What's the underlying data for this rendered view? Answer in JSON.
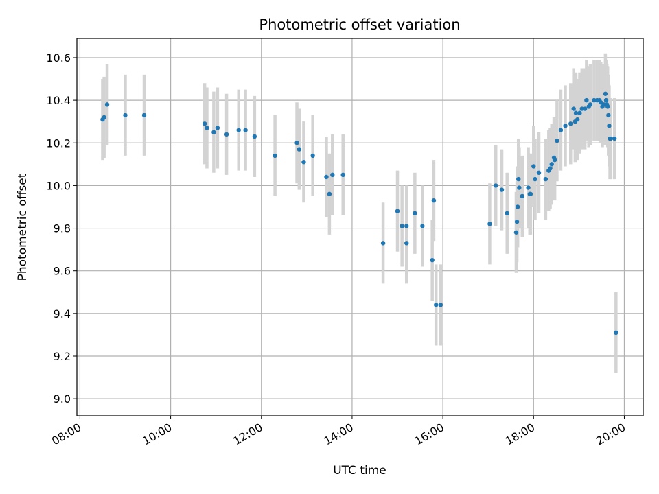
{
  "chart_data": {
    "type": "scatter",
    "title": "Photometric offset variation",
    "xlabel": "UTC time",
    "ylabel": "Photometric offset",
    "xlim": [
      "07:56",
      "20:25"
    ],
    "ylim": [
      8.92,
      10.69
    ],
    "x_ticks": [
      "08:00",
      "10:00",
      "12:00",
      "14:00",
      "16:00",
      "18:00",
      "20:00"
    ],
    "y_ticks": [
      "9.0",
      "9.2",
      "9.4",
      "9.6",
      "9.8",
      "10.0",
      "10.2",
      "10.4",
      "10.6"
    ],
    "grid": true,
    "colors": {
      "point": "#1f77b4",
      "errorbar": "#d3d3d3",
      "grid": "#b0b0b0"
    },
    "series": [
      {
        "error": 0.19,
        "points": [
          [
            "08:30",
            10.31
          ],
          [
            "08:32",
            10.32
          ],
          [
            "08:36",
            10.38
          ],
          [
            "09:00",
            10.33
          ],
          [
            "09:25",
            10.33
          ],
          [
            "10:45",
            10.29
          ],
          [
            "10:48",
            10.27
          ],
          [
            "10:57",
            10.25
          ],
          [
            "11:02",
            10.27
          ],
          [
            "11:14",
            10.24
          ],
          [
            "11:30",
            10.26
          ],
          [
            "11:39",
            10.26
          ],
          [
            "11:51",
            10.23
          ],
          [
            "12:18",
            10.14
          ],
          [
            "12:47",
            10.2
          ],
          [
            "12:50",
            10.17
          ],
          [
            "12:56",
            10.11
          ],
          [
            "13:08",
            10.14
          ],
          [
            "13:26",
            10.04
          ],
          [
            "13:30",
            9.96
          ],
          [
            "13:34",
            10.05
          ],
          [
            "13:48",
            10.05
          ],
          [
            "14:41",
            9.73
          ],
          [
            "15:00",
            9.88
          ],
          [
            "15:06",
            9.81
          ],
          [
            "15:12",
            9.81
          ],
          [
            "15:12",
            9.73
          ],
          [
            "15:23",
            9.87
          ],
          [
            "15:33",
            9.81
          ],
          [
            "15:46",
            9.65
          ],
          [
            "15:48",
            9.93
          ],
          [
            "15:51",
            9.44
          ],
          [
            "15:57",
            9.44
          ],
          [
            "17:02",
            9.82
          ],
          [
            "17:10",
            10.0
          ],
          [
            "17:18",
            9.98
          ],
          [
            "17:25",
            9.87
          ],
          [
            "17:37",
            9.78
          ],
          [
            "17:38",
            9.83
          ],
          [
            "17:39",
            9.9
          ],
          [
            "17:40",
            10.03
          ],
          [
            "17:41",
            9.99
          ],
          [
            "17:45",
            9.95
          ],
          [
            "17:53",
            9.99
          ],
          [
            "17:55",
            9.96
          ],
          [
            "17:56",
            9.96
          ],
          [
            "18:00",
            10.09
          ],
          [
            "18:02",
            10.03
          ],
          [
            "18:07",
            10.06
          ],
          [
            "18:16",
            10.03
          ],
          [
            "18:20",
            10.07
          ],
          [
            "18:22",
            10.08
          ],
          [
            "18:24",
            10.1
          ],
          [
            "18:27",
            10.13
          ],
          [
            "18:28",
            10.12
          ],
          [
            "18:31",
            10.21
          ],
          [
            "18:36",
            10.26
          ],
          [
            "18:42",
            10.28
          ],
          [
            "18:49",
            10.29
          ],
          [
            "18:53",
            10.36
          ],
          [
            "18:55",
            10.3
          ],
          [
            "18:56",
            10.34
          ],
          [
            "18:58",
            10.31
          ],
          [
            "19:01",
            10.34
          ],
          [
            "19:04",
            10.36
          ],
          [
            "19:08",
            10.36
          ],
          [
            "19:10",
            10.4
          ],
          [
            "19:13",
            10.37
          ],
          [
            "19:15",
            10.38
          ],
          [
            "19:20",
            10.4
          ],
          [
            "19:24",
            10.4
          ],
          [
            "19:27",
            10.4
          ],
          [
            "19:29",
            10.39
          ],
          [
            "19:31",
            10.37
          ],
          [
            "19:33",
            10.38
          ],
          [
            "19:35",
            10.43
          ],
          [
            "19:36",
            10.4
          ],
          [
            "19:37",
            10.38
          ],
          [
            "19:38",
            10.37
          ],
          [
            "19:39",
            10.33
          ],
          [
            "19:40",
            10.28
          ],
          [
            "19:41",
            10.22
          ],
          [
            "19:42",
            10.22
          ],
          [
            "19:47",
            10.22
          ],
          [
            "19:49",
            9.31
          ]
        ]
      }
    ]
  }
}
